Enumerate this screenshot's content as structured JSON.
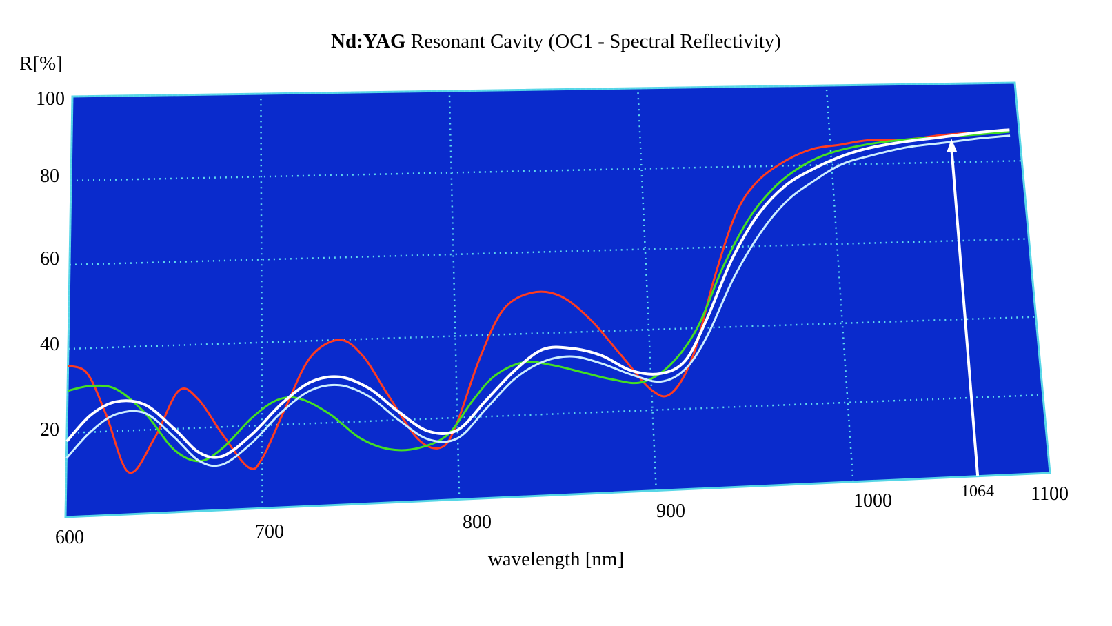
{
  "chart_data": {
    "type": "line",
    "title_bold": "Nd:YAG",
    "title_rest": " Resonant Cavity (OC1 - Spectral Reflectivity)",
    "xlabel": "wavelength [nm]",
    "ylabel": "R[%]",
    "xlim": [
      600,
      1100
    ],
    "ylim": [
      0,
      100
    ],
    "x_ticks": [
      "600",
      "700",
      "800",
      "900",
      "1000",
      "1100"
    ],
    "y_ticks": [
      "20",
      "40",
      "60",
      "80",
      "100"
    ],
    "x_grid": [
      600,
      700,
      800,
      900,
      1000,
      1100
    ],
    "y_grid": [
      20,
      40,
      60,
      80,
      100
    ],
    "grid": true,
    "annotation": {
      "label": "1064",
      "x": 1064,
      "y": 86
    },
    "series": [
      {
        "name": "red",
        "color": "#ff3b1f",
        "x": [
          600,
          610,
          620,
          632,
          645,
          657,
          667,
          680,
          693,
          700,
          712,
          725,
          740,
          752,
          765,
          780,
          792,
          800,
          812,
          825,
          840,
          855,
          870,
          885,
          900,
          910,
          922,
          935,
          948,
          960,
          975,
          990,
          1005,
          1020,
          1040,
          1060,
          1080,
          1095
        ],
        "y": [
          36,
          34,
          24,
          10,
          18,
          29,
          27,
          18,
          10,
          12,
          24,
          36,
          40,
          36,
          26,
          15,
          13,
          19,
          34,
          46,
          50,
          49,
          43,
          34,
          25,
          24,
          33,
          52,
          68,
          76,
          81,
          84,
          85,
          86,
          86,
          87,
          87.5,
          88
        ]
      },
      {
        "name": "green",
        "color": "#44e022",
        "x": [
          600,
          612,
          625,
          640,
          655,
          668,
          680,
          695,
          708,
          720,
          735,
          750,
          765,
          780,
          795,
          808,
          820,
          835,
          850,
          865,
          880,
          895,
          910,
          925,
          940,
          955,
          970,
          985,
          1000,
          1020,
          1040,
          1060,
          1080,
          1095
        ],
        "y": [
          30,
          31,
          30,
          24,
          15,
          12,
          15,
          22,
          26,
          26,
          22,
          16,
          13,
          13,
          16,
          24,
          30,
          33,
          32,
          30,
          28,
          27,
          31,
          40,
          55,
          67,
          75,
          80,
          83,
          85,
          86,
          86.5,
          87,
          87.5
        ]
      },
      {
        "name": "white",
        "color": "#ffffff",
        "x": [
          600,
          612,
          625,
          640,
          655,
          668,
          680,
          695,
          710,
          725,
          740,
          755,
          770,
          785,
          800,
          815,
          830,
          845,
          860,
          875,
          890,
          905,
          918,
          930,
          945,
          960,
          975,
          990,
          1005,
          1020,
          1040,
          1060,
          1080,
          1095
        ],
        "y": [
          18,
          24,
          27,
          26,
          20,
          14,
          13,
          18,
          25,
          30,
          31,
          28,
          22,
          17,
          17,
          24,
          31,
          36,
          36,
          34,
          30,
          29,
          32,
          42,
          57,
          68,
          75,
          79,
          82,
          84,
          85.5,
          86.5,
          87.5,
          88
        ]
      },
      {
        "name": "light-blue",
        "color": "#cdeeff",
        "x": [
          600,
          612,
          625,
          640,
          655,
          668,
          680,
          695,
          710,
          725,
          740,
          755,
          770,
          785,
          800,
          815,
          830,
          845,
          860,
          875,
          890,
          905,
          918,
          930,
          945,
          960,
          975,
          990,
          1005,
          1020,
          1040,
          1060,
          1080,
          1095
        ],
        "y": [
          14,
          20,
          24,
          24,
          18,
          12,
          11,
          16,
          23,
          28,
          29,
          26,
          20,
          15,
          15,
          22,
          29,
          33,
          34,
          32,
          29,
          27,
          30,
          38,
          52,
          63,
          71,
          76,
          80,
          82,
          84,
          85,
          86,
          86.5
        ]
      }
    ]
  }
}
